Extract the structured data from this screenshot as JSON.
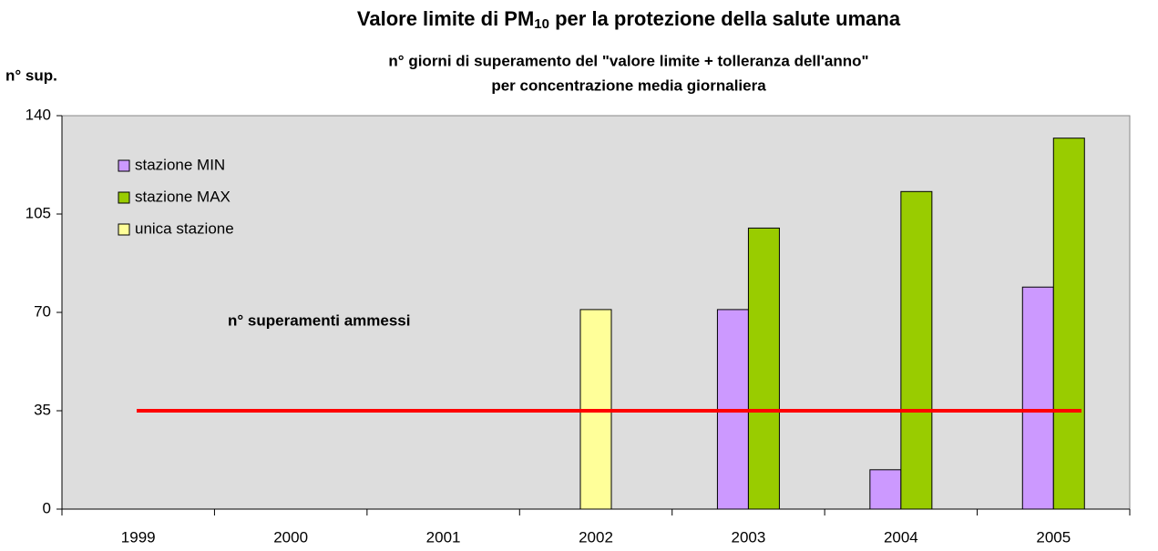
{
  "chart_data": {
    "type": "bar",
    "title_parts": [
      "Valore limite di PM",
      "10",
      " per la protezione della salute umana"
    ],
    "subtitle": [
      "n° giorni di superamento del \"valore limite + tolleranza dell'anno\"",
      "per concentrazione media giornaliera"
    ],
    "y_label": "n° sup.",
    "categories": [
      "1999",
      "2000",
      "2001",
      "2002",
      "2003",
      "2004",
      "2005"
    ],
    "series": [
      {
        "name": "stazione MIN",
        "color": "#cc99ff",
        "values": [
          null,
          null,
          null,
          null,
          71,
          14,
          79
        ]
      },
      {
        "name": "stazione MAX",
        "color": "#99cc00",
        "values": [
          null,
          null,
          null,
          null,
          100,
          113,
          132
        ]
      },
      {
        "name": "unica stazione",
        "color": "#ffff99",
        "values": [
          null,
          null,
          null,
          71,
          null,
          null,
          null
        ]
      }
    ],
    "reference_line": {
      "value": 35,
      "color": "#ff0000",
      "label": "n° superamenti ammessi"
    },
    "ylim": [
      0,
      140
    ],
    "yticks": [
      0,
      35,
      70,
      105,
      140
    ],
    "legend": "upper left"
  }
}
